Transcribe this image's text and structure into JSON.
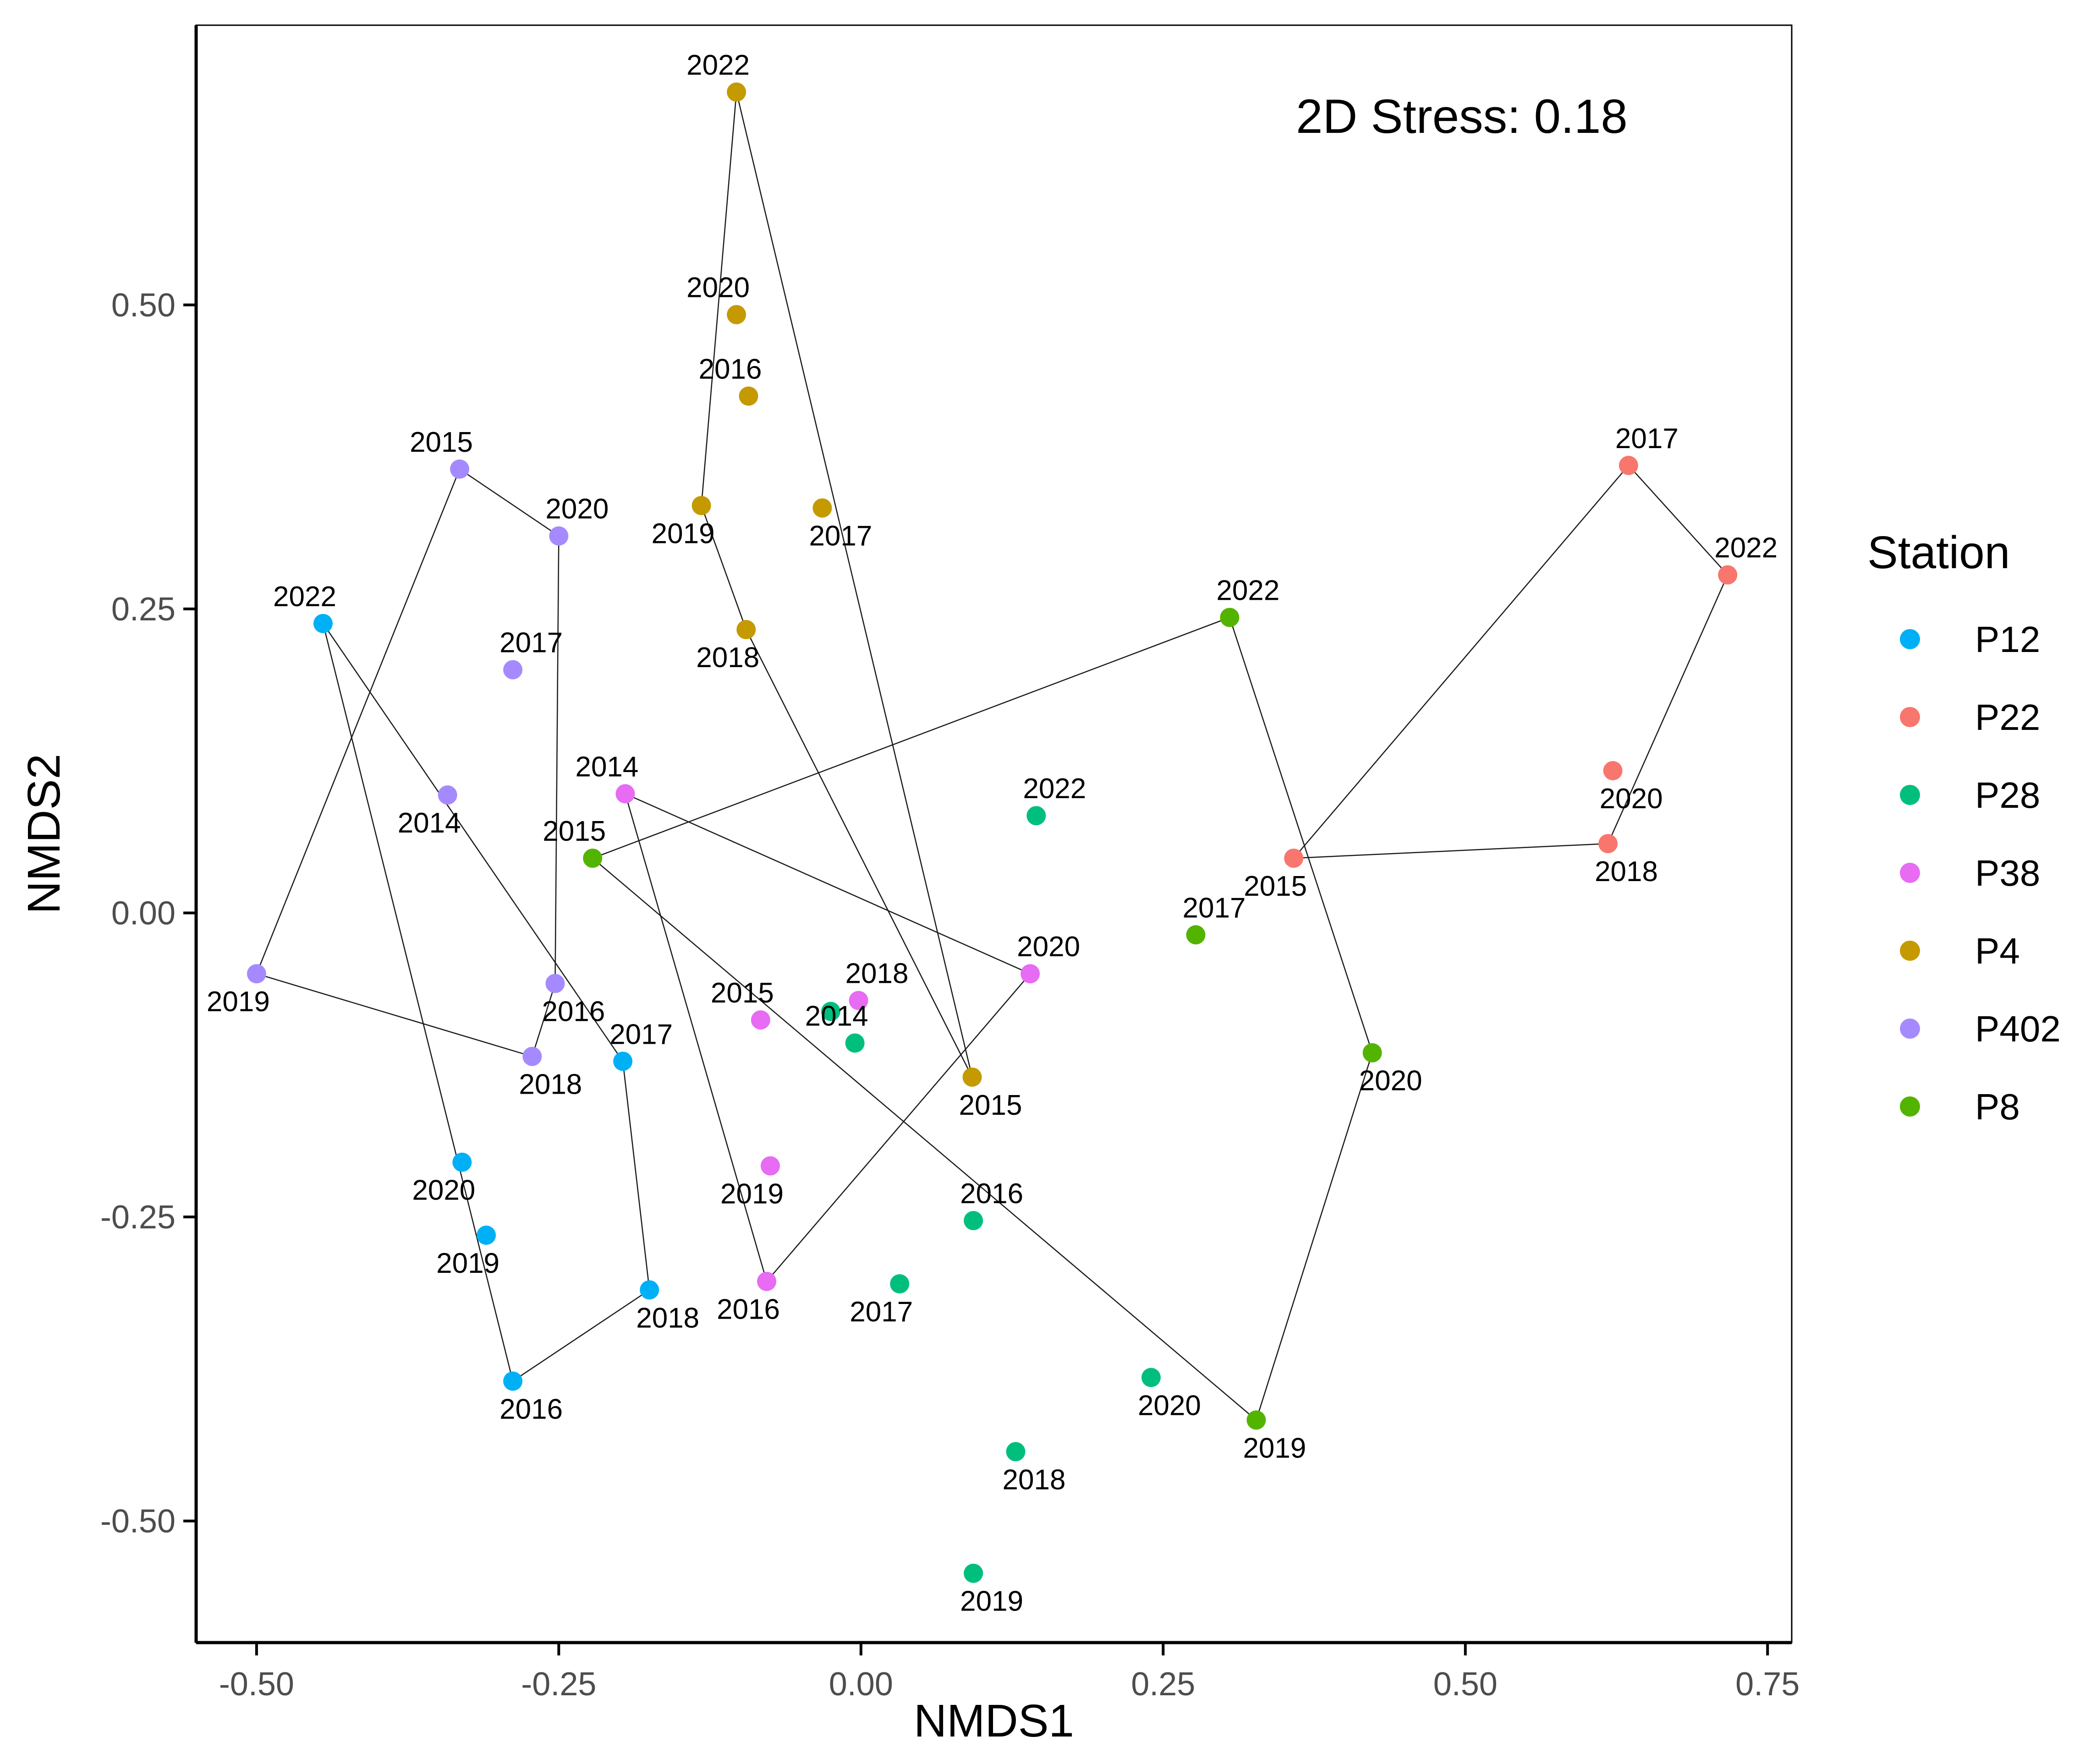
{
  "chart_data": {
    "type": "scatter",
    "title": "",
    "xlabel": "NMDS1",
    "ylabel": "NMDS2",
    "xlim": [
      -0.55,
      0.77
    ],
    "ylim": [
      -0.6,
      0.73
    ],
    "x_ticks": [
      -0.5,
      -0.25,
      0.0,
      0.25,
      0.5,
      0.75
    ],
    "x_tick_labels": [
      "-0.50",
      "-0.25",
      "0.00",
      "0.25",
      "0.50",
      "0.75"
    ],
    "y_ticks": [
      -0.5,
      -0.25,
      0.0,
      0.25,
      0.5
    ],
    "y_tick_labels": [
      "-0.50",
      "-0.25",
      "0.00",
      "0.25",
      "0.50"
    ],
    "grid": false,
    "annotation": "2D Stress: 0.18",
    "legend": {
      "title": "Station",
      "position": "right"
    },
    "series": [
      {
        "name": "P12",
        "color": "#00B0F6",
        "points": [
          {
            "label": "2022",
            "x": -0.445,
            "y": 0.238
          },
          {
            "label": "2020",
            "x": -0.33,
            "y": -0.205
          },
          {
            "label": "2019",
            "x": -0.31,
            "y": -0.265
          },
          {
            "label": "2017",
            "x": -0.197,
            "y": -0.122
          },
          {
            "label": "2018",
            "x": -0.175,
            "y": -0.31
          },
          {
            "label": "2016",
            "x": -0.288,
            "y": -0.385
          }
        ]
      },
      {
        "name": "P22",
        "color": "#F8766D",
        "points": [
          {
            "label": "2017",
            "x": 0.635,
            "y": 0.368
          },
          {
            "label": "2022",
            "x": 0.717,
            "y": 0.278
          },
          {
            "label": "2020",
            "x": 0.622,
            "y": 0.117
          },
          {
            "label": "2015",
            "x": 0.358,
            "y": 0.045
          },
          {
            "label": "2018",
            "x": 0.618,
            "y": 0.057
          }
        ]
      },
      {
        "name": "P28",
        "color": "#00BF7D",
        "points": [
          {
            "label": "2022",
            "x": 0.145,
            "y": 0.08
          },
          {
            "label": "",
            "x": -0.025,
            "y": -0.081
          },
          {
            "label": "2014",
            "x": -0.005,
            "y": -0.107
          },
          {
            "label": "2016",
            "x": 0.093,
            "y": -0.253
          },
          {
            "label": "2017",
            "x": 0.032,
            "y": -0.305
          },
          {
            "label": "2020",
            "x": 0.24,
            "y": -0.382
          },
          {
            "label": "2018",
            "x": 0.128,
            "y": -0.443
          },
          {
            "label": "2019",
            "x": 0.093,
            "y": -0.543
          }
        ]
      },
      {
        "name": "P38",
        "color": "#E76BF3",
        "points": [
          {
            "label": "2014",
            "x": -0.195,
            "y": 0.098
          },
          {
            "label": "2020",
            "x": 0.14,
            "y": -0.05
          },
          {
            "label": "2018",
            "x": -0.002,
            "y": -0.072
          },
          {
            "label": "2015",
            "x": -0.083,
            "y": -0.088
          },
          {
            "label": "2019",
            "x": -0.075,
            "y": -0.208
          },
          {
            "label": "2016",
            "x": -0.078,
            "y": -0.303
          }
        ]
      },
      {
        "name": "P4",
        "color": "#C49A00",
        "points": [
          {
            "label": "2022",
            "x": -0.103,
            "y": 0.675
          },
          {
            "label": "2020",
            "x": -0.103,
            "y": 0.492
          },
          {
            "label": "2016",
            "x": -0.093,
            "y": 0.425
          },
          {
            "label": "2019",
            "x": -0.132,
            "y": 0.335
          },
          {
            "label": "2017",
            "x": -0.032,
            "y": 0.333
          },
          {
            "label": "2018",
            "x": -0.095,
            "y": 0.233
          },
          {
            "label": "2015",
            "x": 0.092,
            "y": -0.135
          }
        ]
      },
      {
        "name": "P402",
        "color": "#A58AFF",
        "points": [
          {
            "label": "2015",
            "x": -0.332,
            "y": 0.365
          },
          {
            "label": "2020",
            "x": -0.25,
            "y": 0.31
          },
          {
            "label": "2017",
            "x": -0.288,
            "y": 0.2
          },
          {
            "label": "2014",
            "x": -0.342,
            "y": 0.097
          },
          {
            "label": "2016",
            "x": -0.253,
            "y": -0.058
          },
          {
            "label": "2018",
            "x": -0.272,
            "y": -0.118
          },
          {
            "label": "2019",
            "x": -0.5,
            "y": -0.05
          }
        ]
      },
      {
        "name": "P8",
        "color": "#53B400",
        "points": [
          {
            "label": "2022",
            "x": 0.305,
            "y": 0.243
          },
          {
            "label": "2015",
            "x": -0.222,
            "y": 0.045
          },
          {
            "label": "2017",
            "x": 0.277,
            "y": -0.018
          },
          {
            "label": "2020",
            "x": 0.423,
            "y": -0.115
          },
          {
            "label": "2019",
            "x": 0.327,
            "y": -0.417
          }
        ]
      }
    ]
  }
}
